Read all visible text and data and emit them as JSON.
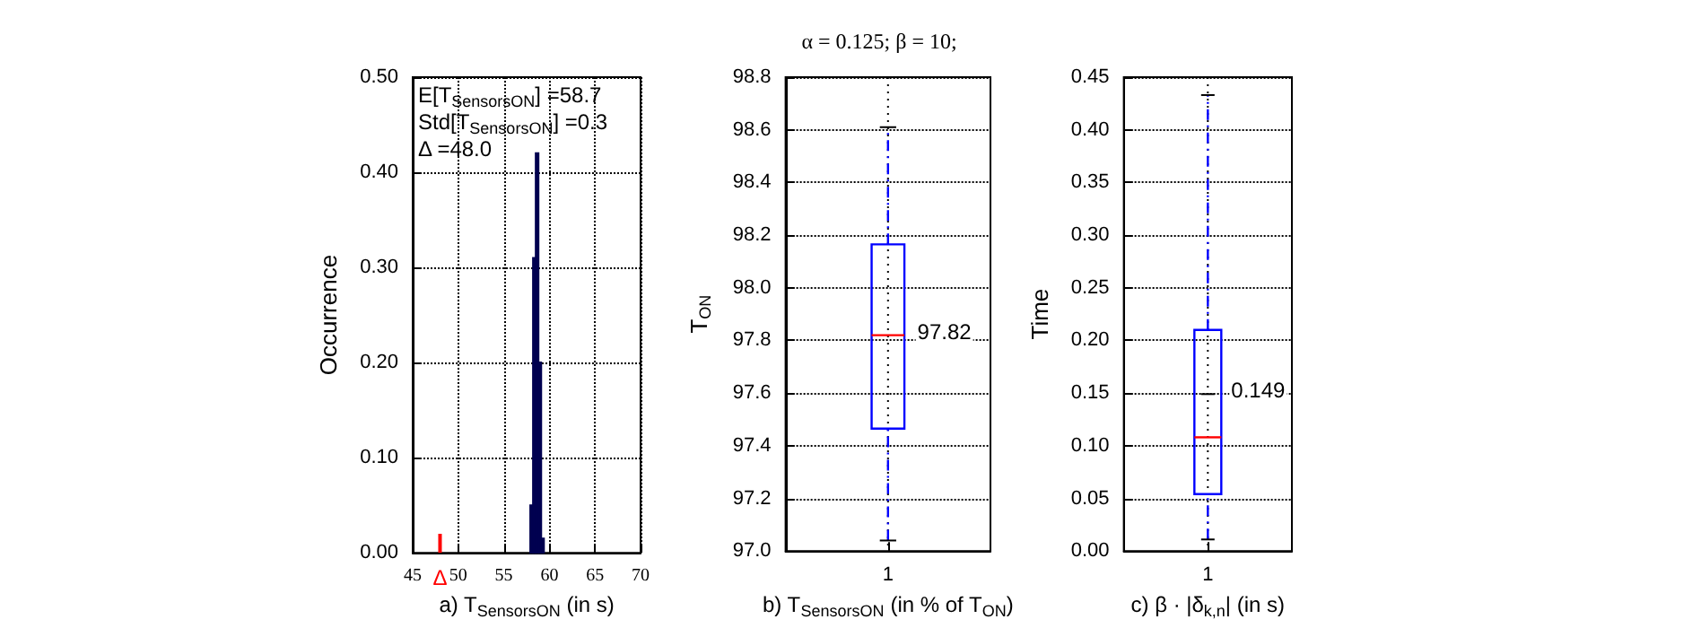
{
  "chart_data": [
    {
      "type": "histogram",
      "xlabel": "a) T$_{SensorsON}$ (in s)",
      "ylabel": "Occurrence",
      "bins": [
        57.9,
        58.2,
        58.5,
        58.8,
        59.1,
        59.4
      ],
      "values": [
        0.05,
        0.31,
        0.42,
        0.2,
        0.015
      ],
      "color": "#000050",
      "series": [
        {
          "type": "bar",
          "x": [
            48
          ],
          "values": [
            0.02
          ],
          "color": "#ff0000"
        }
      ],
      "xlim": [
        45,
        70
      ],
      "xticks": [
        45,
        50,
        55,
        60,
        65,
        70
      ],
      "ylim": [
        0,
        0.5
      ],
      "yticks": [
        {
          "value": 0,
          "label": "0.00"
        },
        {
          "value": 0.1,
          "label": "0.10"
        },
        {
          "value": 0.2,
          "label": "0.20"
        },
        {
          "value": 0.3,
          "label": "0.30"
        },
        {
          "value": 0.4,
          "label": "0.40"
        },
        {
          "value": 0.5,
          "label": "0.50"
        }
      ],
      "annotations": [
        "E[T$_{SensorsON}$] =58.7",
        "Std[T$_{SensorsON}$] =0.3",
        "Δ =48.0",
        {
          "text": "Δ",
          "x": 48,
          "y": 0
        }
      ],
      "grid": true
    },
    {
      "type": "box",
      "title": "α = 0.125; β = 10;",
      "xlabel": "b) T$_{SensorsON}$ (in % of T$_{ON}$)",
      "ylabel": "T$_{ON}$",
      "categories": [
        "1"
      ],
      "color": "#0000ff",
      "boxes": [
        {
          "low": 97.04,
          "q1": 97.465,
          "median": 97.82,
          "q3": 98.165,
          "high": 98.61
        }
      ],
      "ylim": [
        97.0,
        98.8
      ],
      "yticks": [
        {
          "value": 97,
          "label": "97.0"
        },
        97.2,
        97.4,
        97.6,
        97.8,
        {
          "value": 98,
          "label": "98.0"
        },
        98.2,
        98.4,
        98.6,
        98.8
      ],
      "annotations": [
        {
          "text": "97.82",
          "x": "1",
          "y": 97.82
        }
      ],
      "grid": true
    },
    {
      "type": "box",
      "xlabel": "c) β · |δ$_{k,n}$| (in s)",
      "ylabel": "Time",
      "categories": [
        "1"
      ],
      "color": "#0000ff",
      "boxes": [
        {
          "low": 0.011,
          "q1": 0.054,
          "median": 0.108,
          "q3": 0.21,
          "high": 0.433,
          "mean": 0.149
        }
      ],
      "ylim": [
        0,
        0.45
      ],
      "yticks": [
        {
          "value": 0,
          "label": "0.00"
        },
        0.05,
        {
          "value": 0.1,
          "label": "0.10"
        },
        0.15,
        {
          "value": 0.2,
          "label": "0.20"
        },
        0.25,
        {
          "value": 0.3,
          "label": "0.30"
        },
        0.35,
        {
          "value": 0.4,
          "label": "0.40"
        },
        0.45
      ],
      "annotations": [
        {
          "text": "0.149",
          "x": "1",
          "y": 0.149
        }
      ],
      "grid": true
    }
  ]
}
